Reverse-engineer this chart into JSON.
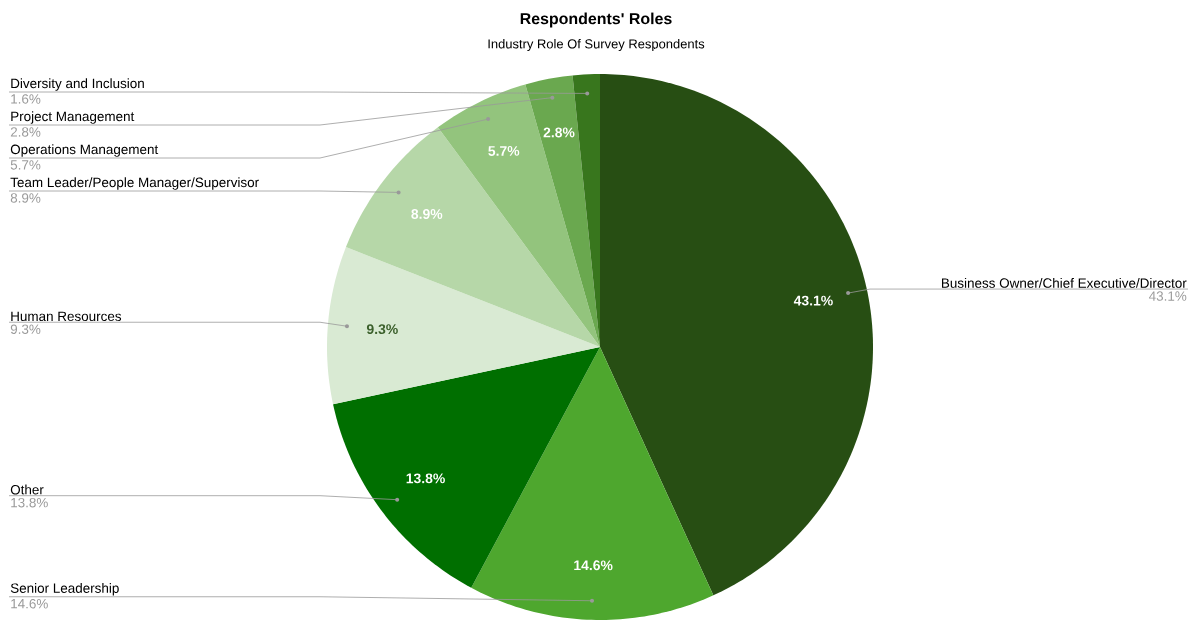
{
  "chart_data": {
    "type": "pie",
    "title": "Respondents' Roles",
    "subtitle": "Industry Role Of Survey Respondents",
    "categories": [
      "Business Owner/Chief Executive/Director",
      "Senior Leadership",
      "Other",
      "Human Resources",
      "Team Leader/People Manager/Supervisor",
      "Operations Management",
      "Project Management",
      "Diversity and Inclusion"
    ],
    "values": [
      43.1,
      14.6,
      13.8,
      9.3,
      8.9,
      5.7,
      2.8,
      1.6
    ],
    "value_labels": [
      "43.1%",
      "14.6%",
      "13.8%",
      "9.3%",
      "8.9%",
      "5.7%",
      "2.8%",
      "1.6%"
    ],
    "colors": [
      "#274e13",
      "#4ea72e",
      "#006f00",
      "#d9ead3",
      "#b6d7a8",
      "#93c47d",
      "#6aa84f",
      "#38761d"
    ],
    "legend": false
  }
}
